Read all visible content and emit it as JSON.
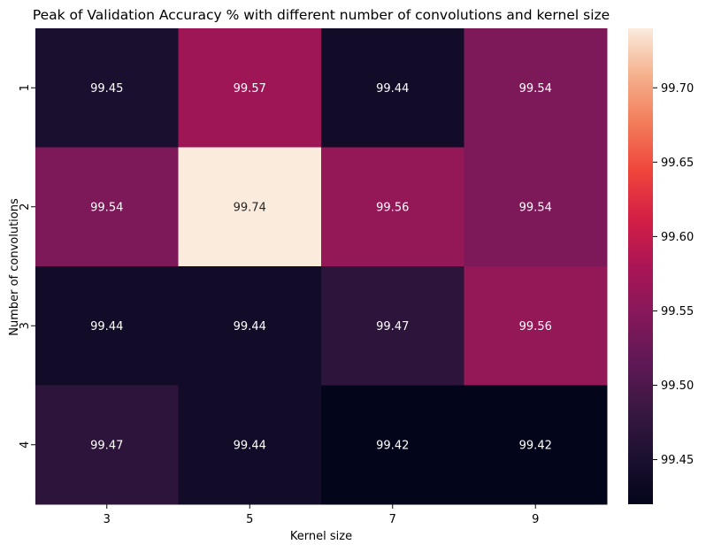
{
  "chart_data": {
    "type": "heatmap",
    "title": "Peak of Validation Accuracy % with different number of convolutions and kernel size",
    "xlabel": "Kernel size",
    "ylabel": "Number of convolutions",
    "x_categories": [
      "3",
      "5",
      "7",
      "9"
    ],
    "y_categories": [
      "1",
      "2",
      "3",
      "4"
    ],
    "values": [
      [
        99.45,
        99.57,
        99.44,
        99.54
      ],
      [
        99.54,
        99.74,
        99.56,
        99.54
      ],
      [
        99.44,
        99.44,
        99.47,
        99.56
      ],
      [
        99.47,
        99.44,
        99.42,
        99.42
      ]
    ],
    "annotations": [
      [
        "99.45",
        "99.57",
        "99.44",
        "99.54"
      ],
      [
        "99.54",
        "99.74",
        "99.56",
        "99.54"
      ],
      [
        "99.44",
        "99.44",
        "99.47",
        "99.56"
      ],
      [
        "99.47",
        "99.44",
        "99.42",
        "99.42"
      ]
    ],
    "colorbar": {
      "vmin": 99.42,
      "vmax": 99.74,
      "ticks": [
        "99.45",
        "99.50",
        "99.55",
        "99.60",
        "99.65",
        "99.70"
      ],
      "colormap": "rocket"
    }
  }
}
